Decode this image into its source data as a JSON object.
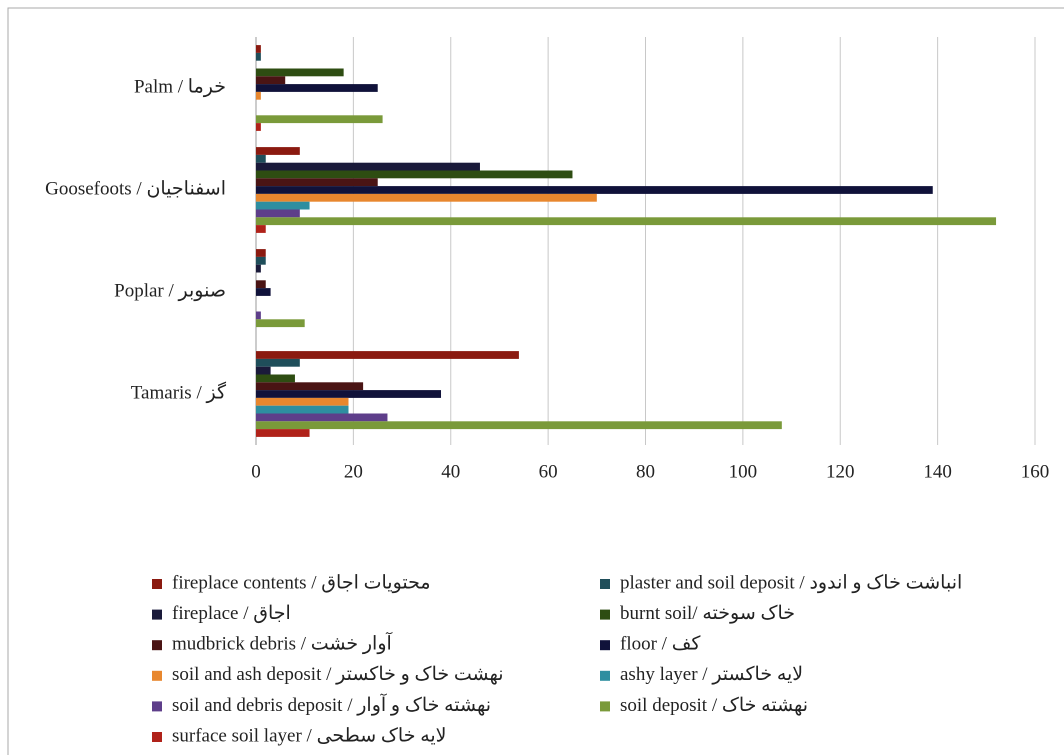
{
  "chart_data": {
    "type": "bar",
    "orientation": "horizontal",
    "categories": [
      "Palm / خرما",
      "Goosefoots / اسفناجیان",
      "Poplar / صنوبر",
      "Tamaris / گز"
    ],
    "series": [
      {
        "name": "fireplace contents / محتویات اجاق",
        "color": "#8b1a10",
        "values": [
          1,
          9,
          2,
          54
        ]
      },
      {
        "name": "plaster and soil deposit / انباشت خاک و اندود",
        "color": "#1f4e5a",
        "values": [
          1,
          2,
          2,
          9
        ]
      },
      {
        "name": "fireplace / اجاق",
        "color": "#1a1a3a",
        "values": [
          0,
          46,
          1,
          3
        ]
      },
      {
        "name": "burnt soil/ خاک سوخته",
        "color": "#2e4d12",
        "values": [
          18,
          65,
          0,
          8
        ]
      },
      {
        "name": "mudbrick debris / آوار خشت",
        "color": "#4a1414",
        "values": [
          6,
          25,
          2,
          22
        ]
      },
      {
        "name": "floor / کف",
        "color": "#10123a",
        "values": [
          25,
          139,
          3,
          38
        ]
      },
      {
        "name": "soil and ash deposit / نهشت خاک و خاکستر",
        "color": "#e8872e",
        "values": [
          1,
          70,
          0,
          19
        ]
      },
      {
        "name": "ashy layer / لایه خاکستر",
        "color": "#2e8ea0",
        "values": [
          0,
          11,
          0,
          19
        ]
      },
      {
        "name": "soil and debris deposit / نهشته خاک و آوار",
        "color": "#5e3e8a",
        "values": [
          0,
          9,
          1,
          27
        ]
      },
      {
        "name": "soil deposit / نهشته خاک",
        "color": "#7a9a3a",
        "values": [
          26,
          152,
          10,
          108
        ]
      },
      {
        "name": "surface soil layer / لایه خاک سطحی",
        "color": "#b0221a",
        "values": [
          1,
          2,
          0,
          11
        ]
      }
    ],
    "xlim": [
      0,
      160
    ],
    "xticks": [
      0,
      20,
      40,
      60,
      80,
      100,
      120,
      140,
      160
    ],
    "grid": true,
    "legend": "bottom"
  }
}
